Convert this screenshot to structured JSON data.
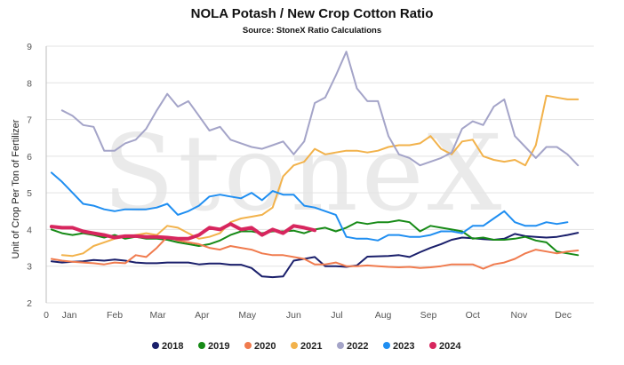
{
  "chart_data": {
    "type": "line",
    "title": "NOLA Potash / New Crop Cotton Ratio",
    "subtitle": "Source: StoneX Ratio Calculations",
    "ylabel": "Unit of Crop Per Ton of Fertilizer",
    "xlabel": "",
    "ylim": [
      2,
      9
    ],
    "yticks": [
      2,
      3,
      4,
      5,
      6,
      7,
      8,
      9
    ],
    "xlim": [
      0,
      52
    ],
    "x_tick_labels": [
      "0",
      "Jan",
      "Feb",
      "Mar",
      "Apr",
      "May",
      "Jun",
      "Jul",
      "Aug",
      "Sep",
      "Oct",
      "Nov",
      "Dec"
    ],
    "x_tick_positions": [
      0,
      2.2,
      6.5,
      10.6,
      14.8,
      19.1,
      23.5,
      27.6,
      32.0,
      36.3,
      40.5,
      44.9,
      49.1
    ],
    "grid": "horizontal",
    "legend_position": "bottom",
    "watermark": "StoneX",
    "series": [
      {
        "name": "2018",
        "color": "#1a1f6b",
        "width": 2,
        "x": [
          0.5,
          1.5,
          2.5,
          3.5,
          4.5,
          5.5,
          6.5,
          7.5,
          8.5,
          9.5,
          10.5,
          11.5,
          12.5,
          13.5,
          14.5,
          15.5,
          16.5,
          17.5,
          18.5,
          19.5,
          20.5,
          21.5,
          22.5,
          23.5,
          24.5,
          25.5,
          26.5,
          27.5,
          28.5,
          29.5,
          30.5,
          31.5,
          32.5,
          33.5,
          34.5,
          35.5,
          36.5,
          37.5,
          38.5,
          39.5,
          40.5,
          41.5,
          42.5,
          43.5,
          44.5,
          45.5,
          46.5,
          47.5,
          48.5,
          49.5,
          50.5
        ],
        "values": [
          3.13,
          3.1,
          3.12,
          3.13,
          3.17,
          3.15,
          3.18,
          3.15,
          3.1,
          3.08,
          3.08,
          3.1,
          3.1,
          3.1,
          3.05,
          3.07,
          3.07,
          3.04,
          3.04,
          2.95,
          2.72,
          2.7,
          2.72,
          3.15,
          3.2,
          3.25,
          3.0,
          3.0,
          2.98,
          3.02,
          3.26,
          3.27,
          3.28,
          3.3,
          3.25,
          3.38,
          3.5,
          3.6,
          3.72,
          3.78,
          3.76,
          3.74,
          3.72,
          3.75,
          3.88,
          3.82,
          3.8,
          3.78,
          3.8,
          3.85,
          3.91
        ]
      },
      {
        "name": "2019",
        "color": "#168a16",
        "width": 2,
        "x": [
          0.5,
          1.5,
          2.5,
          3.5,
          4.5,
          5.5,
          6.5,
          7.5,
          8.5,
          9.5,
          10.5,
          11.5,
          12.5,
          13.5,
          14.5,
          15.5,
          16.5,
          17.5,
          18.5,
          19.5,
          20.5,
          21.5,
          22.5,
          23.5,
          24.5,
          25.5,
          26.5,
          27.5,
          28.5,
          29.5,
          30.5,
          31.5,
          32.5,
          33.5,
          34.5,
          35.5,
          36.5,
          37.5,
          38.5,
          39.5,
          40.5,
          41.5,
          42.5,
          43.5,
          44.5,
          45.5,
          46.5,
          47.5,
          48.5,
          49.5,
          50.5
        ],
        "values": [
          4.0,
          3.9,
          3.85,
          3.9,
          3.85,
          3.78,
          3.85,
          3.75,
          3.8,
          3.75,
          3.75,
          3.72,
          3.65,
          3.6,
          3.55,
          3.6,
          3.7,
          3.85,
          3.95,
          3.95,
          3.9,
          3.95,
          3.95,
          3.97,
          3.9,
          4.0,
          4.05,
          3.95,
          4.05,
          4.2,
          4.15,
          4.2,
          4.2,
          4.25,
          4.2,
          3.95,
          4.1,
          4.05,
          4.0,
          3.95,
          3.75,
          3.78,
          3.72,
          3.72,
          3.75,
          3.8,
          3.7,
          3.65,
          3.4,
          3.35,
          3.3
        ]
      },
      {
        "name": "2020",
        "color": "#f07b4e",
        "width": 2,
        "x": [
          0.5,
          1.5,
          2.5,
          3.5,
          4.5,
          5.5,
          6.5,
          7.5,
          8.5,
          9.5,
          10.5,
          11.5,
          12.5,
          13.5,
          14.5,
          15.5,
          16.5,
          17.5,
          18.5,
          19.5,
          20.5,
          21.5,
          22.5,
          23.5,
          24.5,
          25.5,
          26.5,
          27.5,
          28.5,
          29.5,
          30.5,
          31.5,
          32.5,
          33.5,
          34.5,
          35.5,
          36.5,
          37.5,
          38.5,
          39.5,
          40.5,
          41.5,
          42.5,
          43.5,
          44.5,
          45.5,
          46.5,
          47.5,
          48.5,
          49.5,
          50.5
        ],
        "values": [
          3.2,
          3.15,
          3.12,
          3.1,
          3.08,
          3.05,
          3.1,
          3.08,
          3.3,
          3.25,
          3.5,
          3.8,
          3.7,
          3.65,
          3.6,
          3.5,
          3.45,
          3.55,
          3.5,
          3.45,
          3.35,
          3.3,
          3.3,
          3.25,
          3.2,
          3.05,
          3.05,
          3.1,
          3.0,
          3.0,
          3.02,
          3.0,
          2.98,
          2.97,
          2.98,
          2.95,
          2.97,
          3.0,
          3.05,
          3.05,
          3.05,
          2.93,
          3.05,
          3.1,
          3.2,
          3.35,
          3.45,
          3.4,
          3.35,
          3.4,
          3.43
        ]
      },
      {
        "name": "2021",
        "color": "#f2b24b",
        "width": 2,
        "x": [
          1.5,
          2.5,
          3.5,
          4.5,
          5.5,
          6.5,
          7.5,
          8.5,
          9.5,
          10.5,
          11.5,
          12.5,
          13.5,
          14.5,
          15.5,
          16.5,
          17.5,
          18.5,
          19.5,
          20.5,
          21.5,
          22.5,
          23.5,
          24.5,
          25.5,
          26.5,
          27.5,
          28.5,
          29.5,
          30.5,
          31.5,
          32.5,
          33.5,
          34.5,
          35.5,
          36.5,
          37.5,
          38.5,
          39.5,
          40.5,
          41.5,
          42.5,
          43.5,
          44.5,
          45.5,
          46.5,
          47.5,
          48.5,
          49.5,
          50.5
        ],
        "values": [
          3.3,
          3.28,
          3.35,
          3.55,
          3.65,
          3.75,
          3.8,
          3.85,
          3.9,
          3.85,
          4.1,
          4.05,
          3.9,
          3.75,
          3.8,
          3.9,
          4.2,
          4.3,
          4.35,
          4.4,
          4.6,
          5.45,
          5.75,
          5.85,
          6.2,
          6.05,
          6.1,
          6.15,
          6.15,
          6.1,
          6.15,
          6.25,
          6.3,
          6.3,
          6.35,
          6.55,
          6.2,
          6.05,
          6.4,
          6.45,
          6.0,
          5.9,
          5.85,
          5.9,
          5.75,
          6.3,
          7.65,
          7.6,
          7.55,
          7.55
        ]
      },
      {
        "name": "2022",
        "color": "#a4a4c8",
        "width": 2,
        "x": [
          1.5,
          2.5,
          3.5,
          4.5,
          5.5,
          6.5,
          7.5,
          8.5,
          9.5,
          10.5,
          11.5,
          12.5,
          13.5,
          14.5,
          15.5,
          16.5,
          17.5,
          18.5,
          19.5,
          20.5,
          21.5,
          22.5,
          23.5,
          24.5,
          25.5,
          26.5,
          27.5,
          28.5,
          29.5,
          30.5,
          31.5,
          32.5,
          33.5,
          34.5,
          35.5,
          36.5,
          37.5,
          38.5,
          39.5,
          40.5,
          41.5,
          42.5,
          43.5,
          44.5,
          45.5,
          46.5,
          47.5,
          48.5,
          49.5,
          50.5
        ],
        "values": [
          7.25,
          7.1,
          6.85,
          6.8,
          6.15,
          6.15,
          6.35,
          6.45,
          6.75,
          7.25,
          7.7,
          7.35,
          7.5,
          7.1,
          6.7,
          6.8,
          6.45,
          6.35,
          6.25,
          6.2,
          6.3,
          6.4,
          6.05,
          6.4,
          7.45,
          7.6,
          8.2,
          8.85,
          7.85,
          7.5,
          7.5,
          6.55,
          6.05,
          5.95,
          5.75,
          5.85,
          5.95,
          6.1,
          6.75,
          6.95,
          6.85,
          7.35,
          7.55,
          6.55,
          6.25,
          5.95,
          6.25,
          6.25,
          6.05,
          5.75
        ]
      },
      {
        "name": "2023",
        "color": "#1f8ef1",
        "width": 2,
        "x": [
          0.5,
          1.5,
          2.5,
          3.5,
          4.5,
          5.5,
          6.5,
          7.5,
          8.5,
          9.5,
          10.5,
          11.5,
          12.5,
          13.5,
          14.5,
          15.5,
          16.5,
          17.5,
          18.5,
          19.5,
          20.5,
          21.5,
          22.5,
          23.5,
          24.5,
          25.5,
          26.5,
          27.5,
          28.5,
          29.5,
          30.5,
          31.5,
          32.5,
          33.5,
          34.5,
          35.5,
          36.5,
          37.5,
          38.5,
          39.5,
          40.5,
          41.5,
          42.5,
          43.5,
          44.5,
          45.5,
          46.5,
          47.5,
          48.5,
          49.5
        ],
        "values": [
          5.55,
          5.3,
          5.0,
          4.7,
          4.65,
          4.55,
          4.5,
          4.55,
          4.55,
          4.55,
          4.6,
          4.7,
          4.4,
          4.5,
          4.65,
          4.9,
          4.95,
          4.9,
          4.85,
          5.0,
          4.8,
          5.05,
          4.95,
          4.95,
          4.65,
          4.6,
          4.5,
          4.4,
          3.8,
          3.75,
          3.75,
          3.7,
          3.85,
          3.85,
          3.8,
          3.8,
          3.85,
          3.95,
          3.95,
          3.9,
          4.1,
          4.1,
          4.3,
          4.5,
          4.2,
          4.1,
          4.1,
          4.2,
          4.15,
          4.2
        ]
      },
      {
        "name": "2024",
        "color": "#d7265e",
        "width": 4,
        "x": [
          0.5,
          1.5,
          2.5,
          3.5,
          4.5,
          5.5,
          6.5,
          7.5,
          8.5,
          9.5,
          10.5,
          11.5,
          12.5,
          13.5,
          14.5,
          15.5,
          16.5,
          17.5,
          18.5,
          19.5,
          20.5,
          21.5,
          22.5,
          23.5,
          24.5,
          25.5
        ],
        "values": [
          4.08,
          4.05,
          4.05,
          3.95,
          3.9,
          3.85,
          3.78,
          3.82,
          3.82,
          3.8,
          3.8,
          3.78,
          3.75,
          3.75,
          3.85,
          4.05,
          4.0,
          4.15,
          4.0,
          4.05,
          3.85,
          4.0,
          3.9,
          4.1,
          4.05,
          3.98
        ]
      }
    ]
  }
}
